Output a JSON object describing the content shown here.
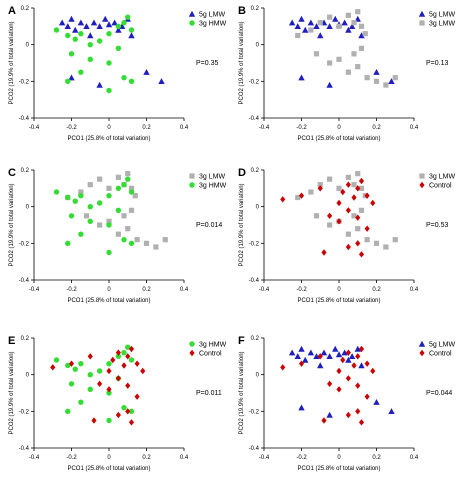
{
  "chart_data": [
    {
      "type": "scatter",
      "panel": "A",
      "xlabel": "PCO1 (25.8% of total variation)",
      "ylabel": "PCO2 (19.9% of total variation)",
      "xlim": [
        -0.4,
        0.4
      ],
      "ylim": [
        -0.4,
        0.2
      ],
      "xticks": [
        -0.4,
        -0.2,
        0,
        0.2,
        0.4
      ],
      "yticks": [
        -0.4,
        -0.2,
        0,
        0.2
      ],
      "tick_labels_x": [
        "-0.4",
        "-0.2",
        "0",
        "0.2",
        "0.4"
      ],
      "tick_labels_y": [
        "-0.4",
        "-0.2",
        "0",
        "0.2"
      ],
      "annotation": "P=0.35",
      "legend_position": "top-right",
      "series": [
        {
          "name": "5g LMW",
          "marker": "triangle",
          "color": "#1f1fbf",
          "x": [
            -0.25,
            -0.22,
            -0.2,
            -0.18,
            -0.15,
            -0.12,
            -0.1,
            -0.08,
            -0.05,
            -0.02,
            0.0,
            0.03,
            0.05,
            0.07,
            0.1,
            0.12,
            -0.2,
            -0.05,
            0.2,
            0.28
          ],
          "y": [
            0.12,
            0.1,
            0.14,
            0.08,
            0.12,
            0.1,
            0.05,
            0.12,
            0.1,
            0.14,
            0.11,
            0.12,
            0.08,
            0.1,
            0.14,
            0.05,
            -0.18,
            -0.22,
            -0.15,
            -0.2
          ]
        },
        {
          "name": "3g HMW",
          "marker": "circle",
          "color": "#33dd33",
          "x": [
            -0.28,
            -0.22,
            -0.18,
            -0.15,
            -0.1,
            -0.05,
            0.0,
            0.05,
            0.08,
            0.1,
            0.12,
            -0.2,
            -0.1,
            0.0,
            0.05,
            -0.15,
            -0.22,
            0.0,
            0.08,
            0.12
          ],
          "y": [
            0.08,
            0.05,
            0.03,
            0.06,
            0.0,
            0.02,
            0.06,
            0.1,
            0.12,
            0.15,
            0.08,
            -0.05,
            -0.08,
            -0.1,
            -0.02,
            -0.15,
            -0.2,
            -0.25,
            -0.18,
            -0.2
          ]
        }
      ]
    },
    {
      "type": "scatter",
      "panel": "B",
      "xlabel": "PCO1 (25.8% of total variation)",
      "ylabel": "PCO2 (19.9% of total variation)",
      "xlim": [
        -0.4,
        0.4
      ],
      "ylim": [
        -0.4,
        0.2
      ],
      "xticks": [
        -0.4,
        -0.2,
        0,
        0.2,
        0.4
      ],
      "yticks": [
        -0.4,
        -0.2,
        0,
        0.2
      ],
      "tick_labels_x": [
        "-0.4",
        "-0.2",
        "0",
        "0.2",
        "0.4"
      ],
      "tick_labels_y": [
        "-0.4",
        "-0.2",
        "0",
        "0.2"
      ],
      "annotation": "P=0.13",
      "legend_position": "top-right",
      "series": [
        {
          "name": "5g LMW",
          "marker": "triangle",
          "color": "#1f1fbf",
          "x": [
            -0.25,
            -0.22,
            -0.2,
            -0.18,
            -0.15,
            -0.12,
            -0.1,
            -0.08,
            -0.05,
            -0.02,
            0.0,
            0.03,
            0.05,
            0.07,
            0.1,
            0.12,
            -0.2,
            -0.05,
            0.2,
            0.28
          ],
          "y": [
            0.12,
            0.1,
            0.14,
            0.08,
            0.12,
            0.1,
            0.05,
            0.12,
            0.1,
            0.14,
            0.11,
            0.12,
            0.08,
            0.1,
            0.14,
            0.05,
            -0.18,
            -0.22,
            -0.15,
            -0.2
          ]
        },
        {
          "name": "3g LMW",
          "marker": "square",
          "color": "#b0b0b0",
          "x": [
            -0.22,
            -0.15,
            -0.1,
            -0.05,
            0.0,
            0.05,
            0.08,
            0.1,
            0.12,
            0.14,
            -0.12,
            -0.05,
            0.0,
            0.05,
            0.1,
            0.15,
            0.2,
            0.25,
            0.3,
            0.08,
            0.12
          ],
          "y": [
            0.05,
            0.08,
            0.12,
            0.15,
            0.1,
            0.16,
            0.12,
            0.18,
            0.1,
            0.06,
            -0.05,
            -0.1,
            -0.08,
            -0.15,
            -0.12,
            -0.18,
            -0.2,
            -0.22,
            -0.18,
            -0.05,
            -0.02
          ]
        }
      ]
    },
    {
      "type": "scatter",
      "panel": "C",
      "xlabel": "PCO1 (25.8% of total variation)",
      "ylabel": "PCO2 (19.9% of total variation)",
      "xlim": [
        -0.4,
        0.4
      ],
      "ylim": [
        -0.4,
        0.2
      ],
      "xticks": [
        -0.4,
        -0.2,
        0,
        0.2,
        0.4
      ],
      "yticks": [
        -0.4,
        -0.2,
        0,
        0.2
      ],
      "tick_labels_x": [
        "-0.4",
        "-0.2",
        "0",
        "0.2",
        "0.4"
      ],
      "tick_labels_y": [
        "-0.4",
        "-0.2",
        "0",
        "0.2"
      ],
      "annotation": "P=0.014",
      "legend_position": "top-right",
      "series": [
        {
          "name": "3g LMW",
          "marker": "square",
          "color": "#b0b0b0",
          "x": [
            -0.22,
            -0.15,
            -0.1,
            -0.05,
            0.0,
            0.05,
            0.08,
            0.1,
            0.12,
            0.14,
            -0.12,
            -0.05,
            0.0,
            0.05,
            0.1,
            0.15,
            0.2,
            0.25,
            0.3,
            0.08,
            0.12
          ],
          "y": [
            0.05,
            0.08,
            0.12,
            0.15,
            0.1,
            0.16,
            0.12,
            0.18,
            0.1,
            0.06,
            -0.05,
            -0.1,
            -0.08,
            -0.15,
            -0.12,
            -0.18,
            -0.2,
            -0.22,
            -0.18,
            -0.05,
            -0.02
          ]
        },
        {
          "name": "3g HMW",
          "marker": "circle",
          "color": "#33dd33",
          "x": [
            -0.28,
            -0.22,
            -0.18,
            -0.15,
            -0.1,
            -0.05,
            0.0,
            0.05,
            0.08,
            0.1,
            0.12,
            -0.2,
            -0.1,
            0.0,
            0.05,
            -0.15,
            -0.22,
            0.0,
            0.08,
            0.12
          ],
          "y": [
            0.08,
            0.05,
            0.03,
            0.06,
            0.0,
            0.02,
            0.06,
            0.1,
            0.12,
            0.15,
            0.08,
            -0.05,
            -0.08,
            -0.1,
            -0.02,
            -0.15,
            -0.2,
            -0.25,
            -0.18,
            -0.2
          ]
        }
      ]
    },
    {
      "type": "scatter",
      "panel": "D",
      "xlabel": "PCO1 (25.8% of total variation)",
      "ylabel": "PCO2 (19.9% of total variation)",
      "xlim": [
        -0.4,
        0.4
      ],
      "ylim": [
        -0.4,
        0.2
      ],
      "xticks": [
        -0.4,
        -0.2,
        0,
        0.2,
        0.4
      ],
      "yticks": [
        -0.4,
        -0.2,
        0,
        0.2
      ],
      "tick_labels_x": [
        "-0.4",
        "-0.2",
        "0",
        "0.2",
        "0.4"
      ],
      "tick_labels_y": [
        "-0.4",
        "-0.2",
        "0",
        "0.2"
      ],
      "annotation": "P=0.53",
      "legend_position": "top-right",
      "series": [
        {
          "name": "3g LMW",
          "marker": "square",
          "color": "#b0b0b0",
          "x": [
            -0.22,
            -0.15,
            -0.1,
            -0.05,
            0.0,
            0.05,
            0.08,
            0.1,
            0.12,
            0.14,
            -0.12,
            -0.05,
            0.0,
            0.05,
            0.1,
            0.15,
            0.2,
            0.25,
            0.3,
            0.08,
            0.12
          ],
          "y": [
            0.05,
            0.08,
            0.12,
            0.15,
            0.1,
            0.16,
            0.12,
            0.18,
            0.1,
            0.06,
            -0.05,
            -0.1,
            -0.08,
            -0.15,
            -0.12,
            -0.18,
            -0.2,
            -0.22,
            -0.18,
            -0.05,
            -0.02
          ]
        },
        {
          "name": "Control",
          "marker": "diamond",
          "color": "#cc0000",
          "x": [
            -0.3,
            -0.2,
            -0.1,
            0.0,
            0.02,
            0.05,
            0.08,
            0.1,
            0.12,
            0.15,
            0.18,
            -0.05,
            0.0,
            0.05,
            0.1,
            0.15,
            0.1,
            -0.08,
            0.05,
            0.12
          ],
          "y": [
            0.04,
            0.06,
            0.1,
            0.02,
            0.08,
            0.12,
            0.05,
            0.1,
            0.14,
            0.06,
            0.02,
            -0.05,
            -0.08,
            -0.02,
            -0.06,
            -0.12,
            -0.2,
            -0.25,
            -0.22,
            -0.26
          ]
        }
      ]
    },
    {
      "type": "scatter",
      "panel": "E",
      "xlabel": "PCO1 (25.8% of total variation)",
      "ylabel": "PCO2 (19.9% of total variation)",
      "xlim": [
        -0.4,
        0.4
      ],
      "ylim": [
        -0.4,
        0.2
      ],
      "xticks": [
        -0.4,
        -0.2,
        0,
        0.2,
        0.4
      ],
      "yticks": [
        -0.4,
        -0.2,
        0,
        0.2
      ],
      "tick_labels_x": [
        "-0.4",
        "-0.2",
        "0",
        "0.2",
        "0.4"
      ],
      "tick_labels_y": [
        "-0.4",
        "-0.2",
        "0",
        "0.2"
      ],
      "annotation": "P=0.011",
      "legend_position": "top-right",
      "series": [
        {
          "name": "3g HMW",
          "marker": "circle",
          "color": "#33dd33",
          "x": [
            -0.28,
            -0.22,
            -0.18,
            -0.15,
            -0.1,
            -0.05,
            0.0,
            0.05,
            0.08,
            0.1,
            0.12,
            -0.2,
            -0.1,
            0.0,
            0.05,
            -0.15,
            -0.22,
            0.0,
            0.08,
            0.12
          ],
          "y": [
            0.08,
            0.05,
            0.03,
            0.06,
            0.0,
            0.02,
            0.06,
            0.1,
            0.12,
            0.15,
            0.08,
            -0.05,
            -0.08,
            -0.1,
            -0.02,
            -0.15,
            -0.2,
            -0.25,
            -0.18,
            -0.2
          ]
        },
        {
          "name": "Control",
          "marker": "diamond",
          "color": "#cc0000",
          "x": [
            -0.3,
            -0.2,
            -0.1,
            0.0,
            0.02,
            0.05,
            0.08,
            0.1,
            0.12,
            0.15,
            0.18,
            -0.05,
            0.0,
            0.05,
            0.1,
            0.15,
            0.1,
            -0.08,
            0.05,
            0.12
          ],
          "y": [
            0.04,
            0.06,
            0.1,
            0.02,
            0.08,
            0.12,
            0.05,
            0.1,
            0.14,
            0.06,
            0.02,
            -0.05,
            -0.08,
            -0.02,
            -0.06,
            -0.12,
            -0.2,
            -0.25,
            -0.22,
            -0.26
          ]
        }
      ]
    },
    {
      "type": "scatter",
      "panel": "F",
      "xlabel": "PCO1 (25.8% of total variation)",
      "ylabel": "PCO2 (19.9% of total variation)",
      "xlim": [
        -0.4,
        0.4
      ],
      "ylim": [
        -0.4,
        0.2
      ],
      "xticks": [
        -0.4,
        -0.2,
        0,
        0.2,
        0.4
      ],
      "yticks": [
        -0.4,
        -0.2,
        0,
        0.2
      ],
      "tick_labels_x": [
        "-0.4",
        "-0.2",
        "0",
        "0.2",
        "0.4"
      ],
      "tick_labels_y": [
        "-0.4",
        "-0.2",
        "0",
        "0.2"
      ],
      "annotation": "P=0.044",
      "legend_position": "top-right",
      "series": [
        {
          "name": "5g LMW",
          "marker": "triangle",
          "color": "#1f1fbf",
          "x": [
            -0.25,
            -0.22,
            -0.2,
            -0.18,
            -0.15,
            -0.12,
            -0.1,
            -0.08,
            -0.05,
            -0.02,
            0.0,
            0.03,
            0.05,
            0.07,
            0.1,
            0.12,
            -0.2,
            -0.05,
            0.2,
            0.28
          ],
          "y": [
            0.12,
            0.1,
            0.14,
            0.08,
            0.12,
            0.1,
            0.05,
            0.12,
            0.1,
            0.14,
            0.11,
            0.12,
            0.08,
            0.1,
            0.14,
            0.05,
            -0.18,
            -0.22,
            -0.15,
            -0.2
          ]
        },
        {
          "name": "Control",
          "marker": "diamond",
          "color": "#cc0000",
          "x": [
            -0.3,
            -0.2,
            -0.1,
            0.0,
            0.02,
            0.05,
            0.08,
            0.1,
            0.12,
            0.15,
            0.18,
            -0.05,
            0.0,
            0.05,
            0.1,
            0.15,
            0.1,
            -0.08,
            0.05,
            0.12
          ],
          "y": [
            0.04,
            0.06,
            0.1,
            0.02,
            0.08,
            0.12,
            0.05,
            0.1,
            0.14,
            0.06,
            0.02,
            -0.05,
            -0.08,
            -0.02,
            -0.06,
            -0.12,
            -0.2,
            -0.25,
            -0.22,
            -0.26
          ]
        }
      ]
    }
  ]
}
